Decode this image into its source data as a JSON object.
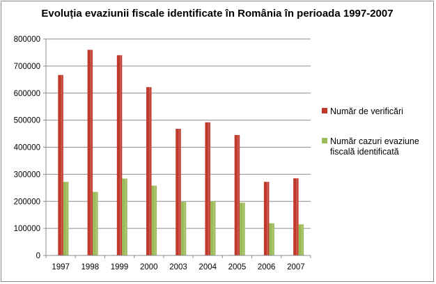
{
  "colors": {
    "series1": "#c0392b",
    "series2": "#9bbb59",
    "series0": "#4f6fb4",
    "grid": "#8c8c8c",
    "axis": "#8c8c8c"
  },
  "chart_data": {
    "type": "bar",
    "title": "Evoluția evaziunii fiscale identificate în România în perioada 1997-2007",
    "xlabel": "",
    "ylabel": "",
    "ylim": [
      0,
      800000
    ],
    "yticks": [
      "0",
      "100000",
      "200000",
      "300000",
      "400000",
      "500000",
      "600000",
      "700000",
      "800000"
    ],
    "grid": true,
    "legend_position": "right",
    "categories": [
      "1997",
      "1998",
      "1999",
      "2000",
      "2003",
      "2004",
      "2005",
      "2006",
      "2007"
    ],
    "series": [
      {
        "name": "",
        "color_key": "series0",
        "values": [
          1500,
          1500,
          1500,
          1500,
          1500,
          1500,
          1500,
          1500,
          1500
        ]
      },
      {
        "name": "Număr de verificări",
        "color_key": "series1",
        "values": [
          667000,
          760000,
          740000,
          622000,
          468000,
          492000,
          445000,
          272000,
          285000
        ]
      },
      {
        "name": "Număr cazuri evaziune fiscală identificată",
        "color_key": "series2",
        "values": [
          272000,
          235000,
          284000,
          258000,
          198000,
          200000,
          195000,
          119000,
          115000
        ]
      }
    ],
    "legend_lines": [
      [
        "Număr de verificări"
      ],
      [
        "Număr cazuri evaziune",
        "fiscală identificată"
      ]
    ]
  }
}
